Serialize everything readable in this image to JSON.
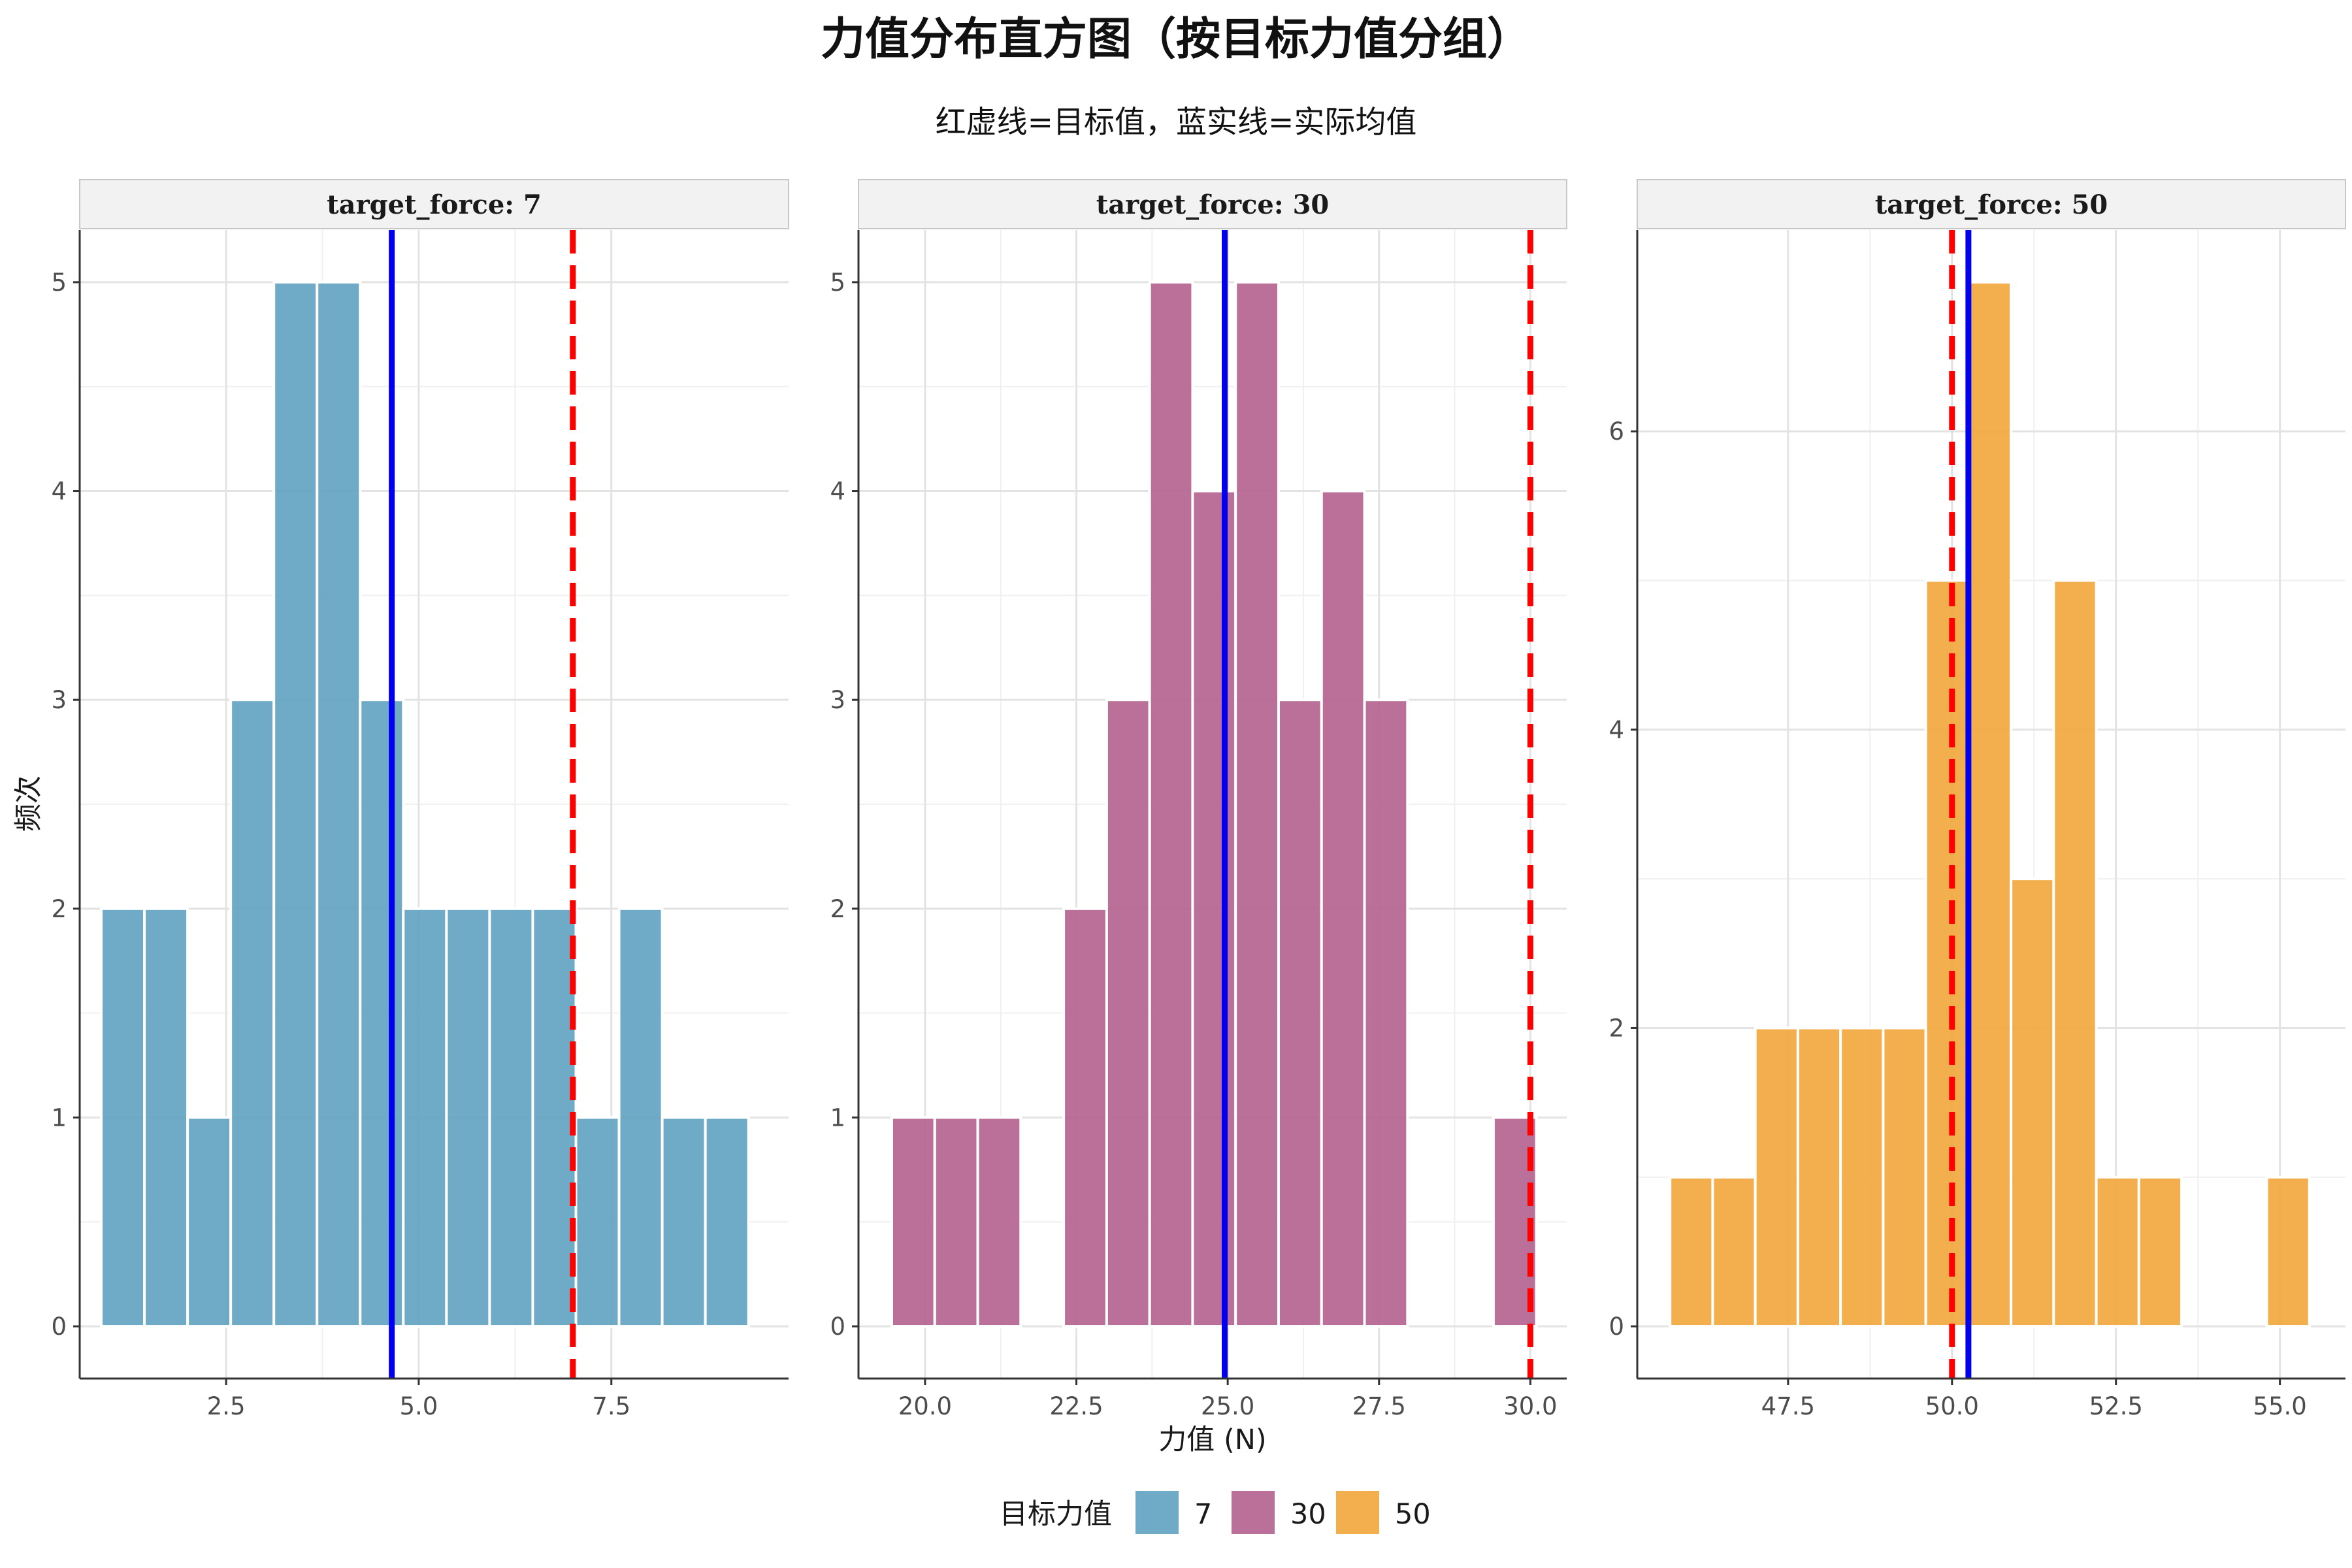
{
  "chart_data": {
    "type": "bar",
    "title": "力值分布直方图（按目标力值分组）",
    "subtitle": "红虚线=目标值，蓝实线=实际均值",
    "xlabel": "力值 (N)",
    "ylabel": "频次",
    "legend": {
      "title": "目标力值",
      "position": "bottom",
      "entries": [
        {
          "label": "7",
          "color": "#5fa2c0"
        },
        {
          "label": "30",
          "color": "#b2618e"
        },
        {
          "label": "50",
          "color": "#f2a53a"
        }
      ]
    },
    "reference_line_colors": {
      "target": "#ff0000",
      "mean": "#0000ee"
    },
    "panels": [
      {
        "strip": "target_force: 7",
        "target": 7.0,
        "mean": 4.65,
        "xlim": [
          0.6,
          9.8
        ],
        "ylim": [
          -0.25,
          5.25
        ],
        "xticks": [
          2.5,
          5.0,
          7.5
        ],
        "xtick_labels": [
          "2.5",
          "5.0",
          "7.5"
        ],
        "yticks": [
          0,
          1,
          2,
          3,
          4,
          5
        ],
        "ytick_labels": [
          "0",
          "1",
          "2",
          "3",
          "4",
          "5"
        ],
        "bins": [
          {
            "x0": 0.88,
            "x1": 1.44,
            "count": 2
          },
          {
            "x0": 1.44,
            "x1": 2.0,
            "count": 2
          },
          {
            "x0": 2.0,
            "x1": 2.56,
            "count": 1
          },
          {
            "x0": 2.56,
            "x1": 3.12,
            "count": 3
          },
          {
            "x0": 3.12,
            "x1": 3.68,
            "count": 5
          },
          {
            "x0": 3.68,
            "x1": 4.24,
            "count": 5
          },
          {
            "x0": 4.24,
            "x1": 4.8,
            "count": 3
          },
          {
            "x0": 4.8,
            "x1": 5.36,
            "count": 2
          },
          {
            "x0": 5.36,
            "x1": 5.92,
            "count": 2
          },
          {
            "x0": 5.92,
            "x1": 6.48,
            "count": 2
          },
          {
            "x0": 6.48,
            "x1": 7.04,
            "count": 2
          },
          {
            "x0": 7.04,
            "x1": 7.6,
            "count": 1
          },
          {
            "x0": 7.6,
            "x1": 8.16,
            "count": 2
          },
          {
            "x0": 8.16,
            "x1": 8.72,
            "count": 1
          },
          {
            "x0": 8.72,
            "x1": 9.28,
            "count": 1
          }
        ]
      },
      {
        "strip": "target_force: 30",
        "target": 30.0,
        "mean": 24.95,
        "xlim": [
          18.9,
          30.6
        ],
        "ylim": [
          -0.25,
          5.25
        ],
        "xticks": [
          20.0,
          22.5,
          25.0,
          27.5,
          30.0
        ],
        "xtick_labels": [
          "20.0",
          "22.5",
          "25.0",
          "27.5",
          "30.0"
        ],
        "yticks": [
          0,
          1,
          2,
          3,
          4,
          5
        ],
        "ytick_labels": [
          "0",
          "1",
          "2",
          "3",
          "4",
          "5"
        ],
        "bins": [
          {
            "x0": 19.45,
            "x1": 20.16,
            "count": 1
          },
          {
            "x0": 20.16,
            "x1": 20.87,
            "count": 1
          },
          {
            "x0": 20.87,
            "x1": 21.58,
            "count": 1
          },
          {
            "x0": 21.58,
            "x1": 22.29,
            "count": 0
          },
          {
            "x0": 22.29,
            "x1": 23.0,
            "count": 2
          },
          {
            "x0": 23.0,
            "x1": 23.71,
            "count": 3
          },
          {
            "x0": 23.71,
            "x1": 24.42,
            "count": 5
          },
          {
            "x0": 24.42,
            "x1": 25.13,
            "count": 4
          },
          {
            "x0": 25.13,
            "x1": 25.84,
            "count": 5
          },
          {
            "x0": 25.84,
            "x1": 26.55,
            "count": 3
          },
          {
            "x0": 26.55,
            "x1": 27.26,
            "count": 4
          },
          {
            "x0": 27.26,
            "x1": 27.97,
            "count": 3
          },
          {
            "x0": 27.97,
            "x1": 28.68,
            "count": 0
          },
          {
            "x0": 28.68,
            "x1": 29.39,
            "count": 0
          },
          {
            "x0": 29.39,
            "x1": 30.1,
            "count": 1
          }
        ]
      },
      {
        "strip": "target_force: 50",
        "target": 50.0,
        "mean": 50.25,
        "xlim": [
          45.2,
          56.0
        ],
        "ylim": [
          -0.35,
          7.35
        ],
        "xticks": [
          47.5,
          50.0,
          52.5,
          55.0
        ],
        "xtick_labels": [
          "47.5",
          "50.0",
          "52.5",
          "55.0"
        ],
        "yticks": [
          0,
          2,
          4,
          6
        ],
        "ytick_labels": [
          "0",
          "2",
          "4",
          "6"
        ],
        "bins": [
          {
            "x0": 45.7,
            "x1": 46.35,
            "count": 1
          },
          {
            "x0": 46.35,
            "x1": 47.0,
            "count": 1
          },
          {
            "x0": 47.0,
            "x1": 47.65,
            "count": 2
          },
          {
            "x0": 47.65,
            "x1": 48.3,
            "count": 2
          },
          {
            "x0": 48.3,
            "x1": 48.95,
            "count": 2
          },
          {
            "x0": 48.95,
            "x1": 49.6,
            "count": 2
          },
          {
            "x0": 49.6,
            "x1": 50.25,
            "count": 5
          },
          {
            "x0": 50.25,
            "x1": 50.9,
            "count": 7
          },
          {
            "x0": 50.9,
            "x1": 51.55,
            "count": 3
          },
          {
            "x0": 51.55,
            "x1": 52.2,
            "count": 5
          },
          {
            "x0": 52.2,
            "x1": 52.85,
            "count": 1
          },
          {
            "x0": 52.85,
            "x1": 53.5,
            "count": 1
          },
          {
            "x0": 53.5,
            "x1": 54.15,
            "count": 0
          },
          {
            "x0": 54.15,
            "x1": 54.8,
            "count": 0
          },
          {
            "x0": 54.8,
            "x1": 55.45,
            "count": 1
          }
        ]
      }
    ]
  }
}
